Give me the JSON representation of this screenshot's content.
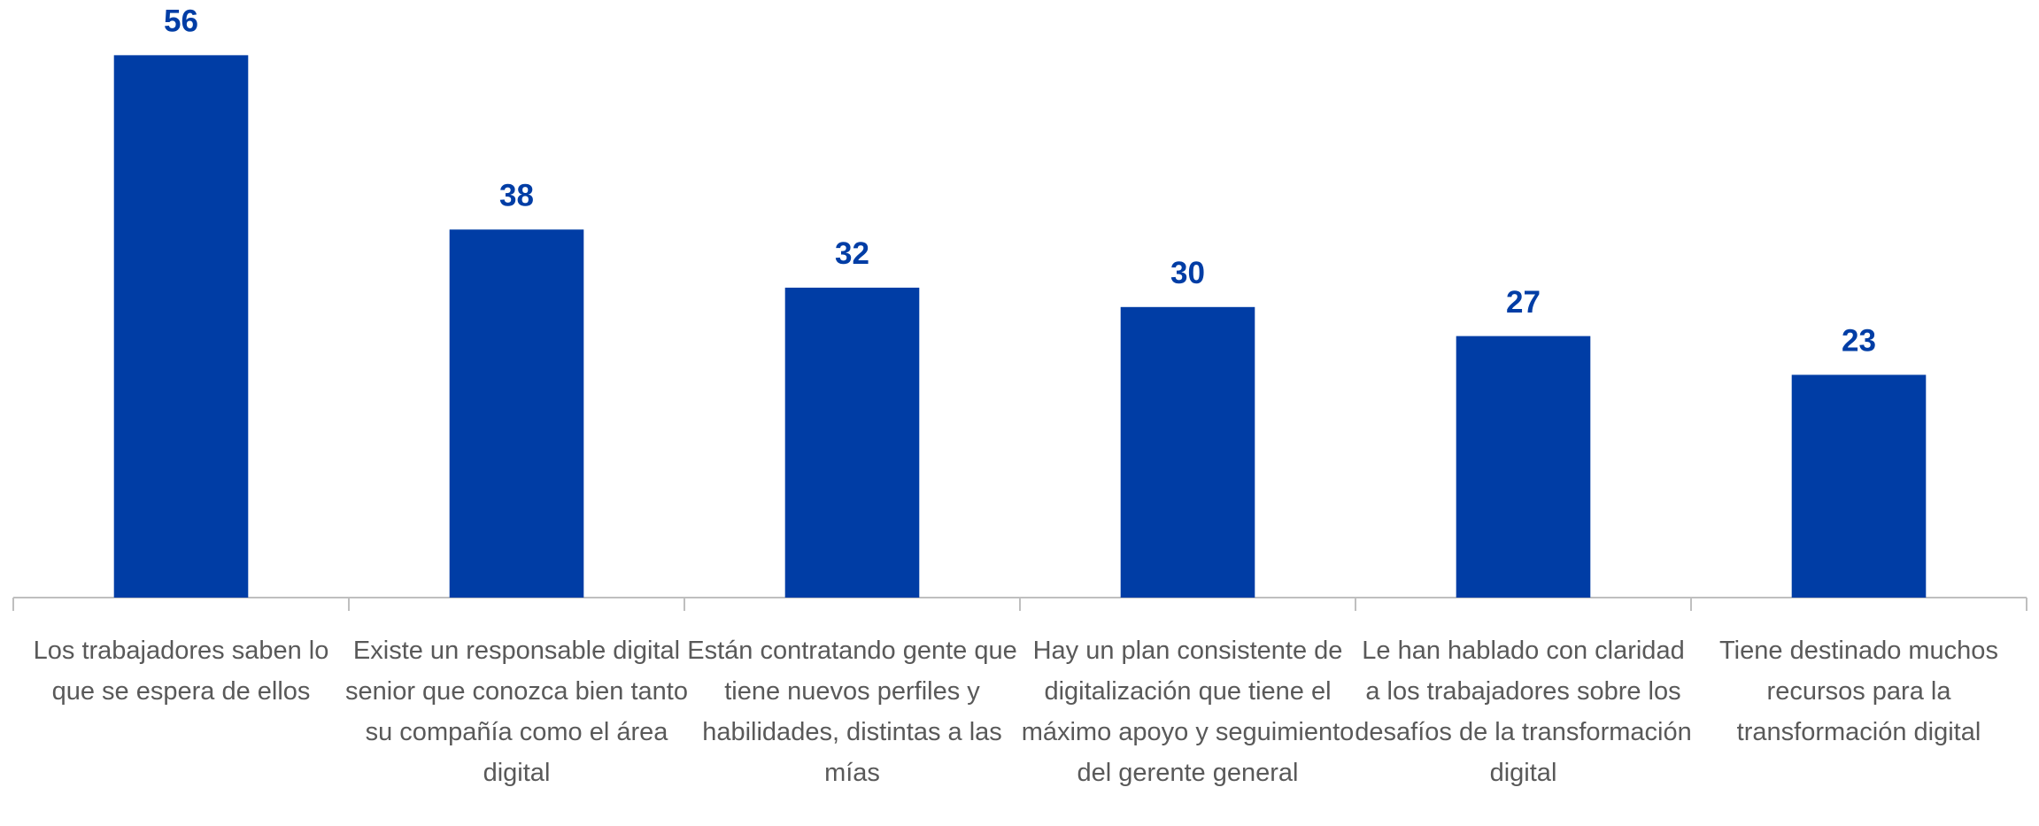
{
  "chart_data": {
    "type": "bar",
    "categories": [
      "Los trabajadores saben lo que se espera de ellos",
      "Existe un responsable digital senior que conozca bien tanto su compañía como el área digital",
      "Están contratando gente que tiene nuevos perfiles y habilidades, distintas a las mías",
      "Hay un plan consistente de digitalización que tiene el máximo apoyo y seguimiento del gerente general",
      "Le han hablado con claridad a los trabajadores sobre los desafíos de la transformación digital",
      "Tiene destinado muchos recursos para la transformación digital"
    ],
    "values": [
      56,
      38,
      32,
      30,
      27,
      23
    ],
    "color": "#003da5",
    "ylim": [
      0,
      60
    ],
    "grid": false
  }
}
